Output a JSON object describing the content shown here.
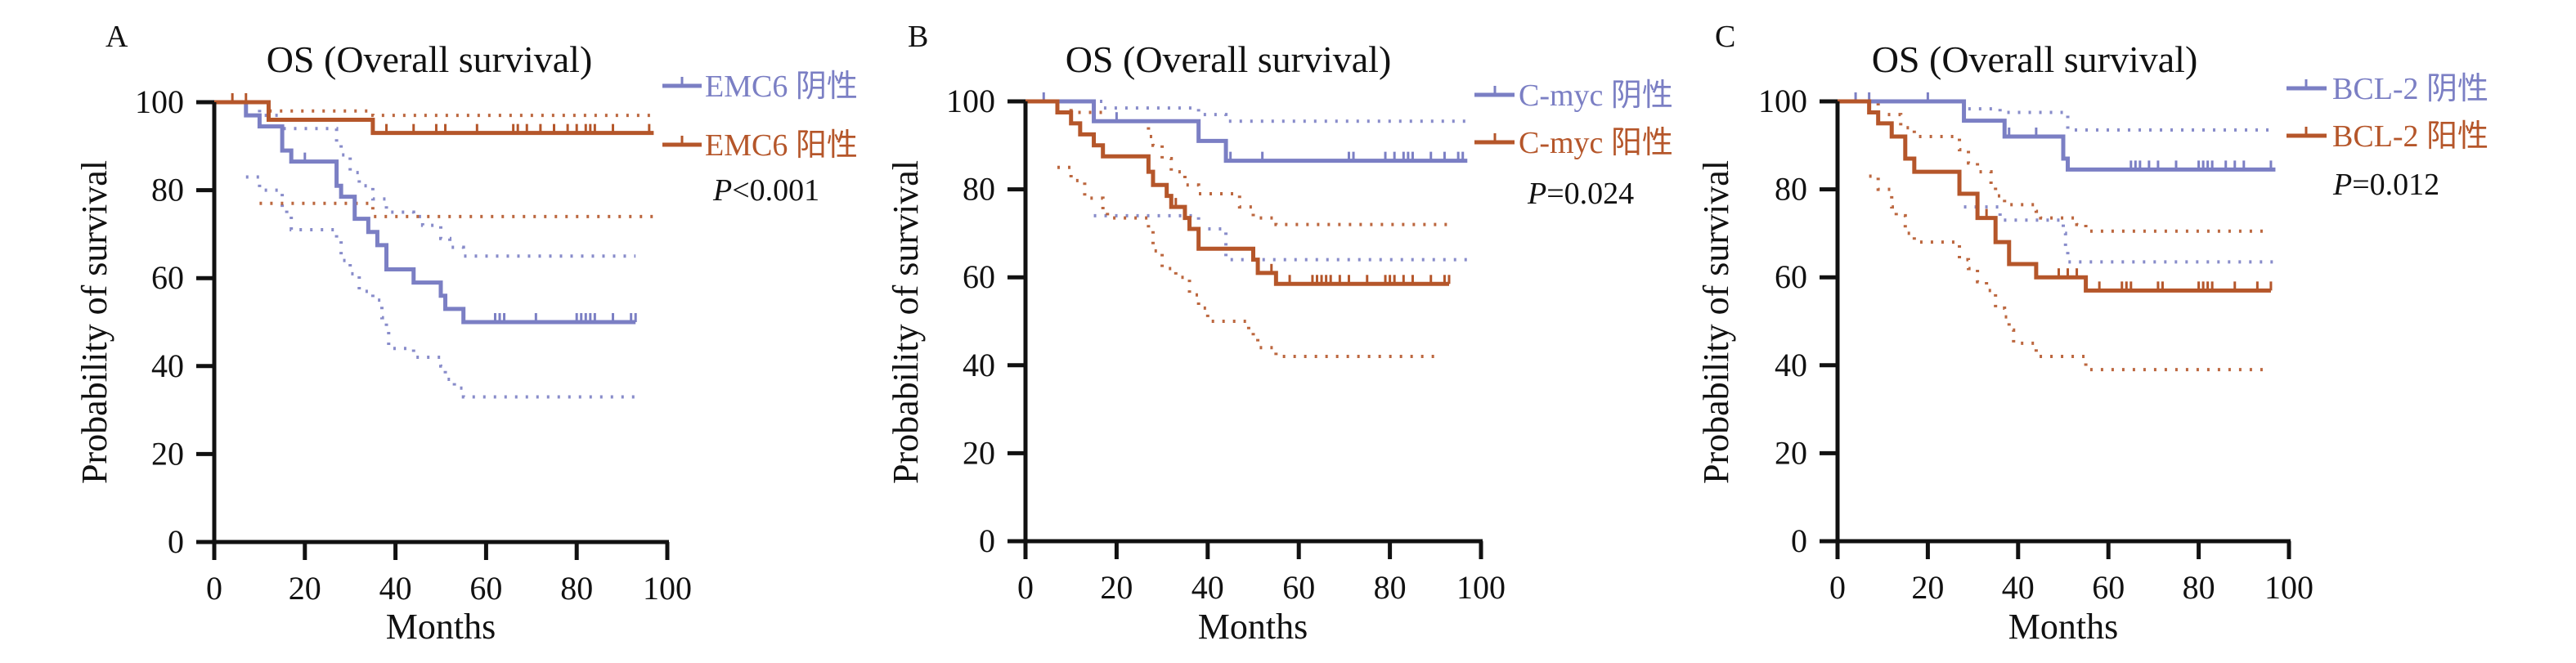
{
  "figure": {
    "colors": {
      "negative": "#7b7fc4",
      "positive": "#b5562a",
      "axis": "#111111",
      "text": "#111111"
    }
  },
  "chart_data": [
    {
      "panel": "A",
      "type": "line",
      "subtype": "kaplan-meier",
      "title": "OS (Overall survival)",
      "xlabel": "Months",
      "ylabel": "Probability of survival",
      "xlim": [
        0,
        100
      ],
      "ylim": [
        0,
        100
      ],
      "xticks": [
        0,
        20,
        40,
        60,
        80,
        100
      ],
      "yticks": [
        0,
        20,
        40,
        60,
        80,
        100
      ],
      "grid": false,
      "legend_position": "top-right",
      "annotation": {
        "italic": "P",
        "rest": "<0.001"
      },
      "series": [
        {
          "name": "EMC6 阴性",
          "color_key": "negative",
          "steps": [
            [
              0,
              100
            ],
            [
              7,
              97
            ],
            [
              10,
              94.5
            ],
            [
              15,
              89
            ],
            [
              17,
              86.5
            ],
            [
              27,
              81
            ],
            [
              28,
              78.5
            ],
            [
              31,
              73.5
            ],
            [
              34,
              70.5
            ],
            [
              36,
              67.5
            ],
            [
              38,
              62
            ],
            [
              44,
              59
            ],
            [
              50,
              56
            ],
            [
              51,
              53
            ],
            [
              55,
              50
            ],
            [
              93,
              50
            ]
          ],
          "censored": [
            20,
            62,
            63,
            64,
            71,
            80,
            81,
            82,
            83,
            84,
            88,
            92,
            93
          ],
          "ci_upper": [
            [
              7,
              100
            ],
            [
              10,
              97
            ],
            [
              15,
              94
            ],
            [
              27,
              91
            ],
            [
              28,
              88
            ],
            [
              30,
              84
            ],
            [
              32,
              81
            ],
            [
              35,
              78
            ],
            [
              38,
              75
            ],
            [
              44,
              74
            ],
            [
              46,
              72
            ],
            [
              50,
              69
            ],
            [
              52,
              67
            ],
            [
              55,
              65
            ],
            [
              93,
              65
            ]
          ],
          "ci_lower": [
            [
              7,
              83
            ],
            [
              10,
              80
            ],
            [
              15,
              76
            ],
            [
              16,
              74
            ],
            [
              17,
              71
            ],
            [
              27,
              69
            ],
            [
              28,
              64
            ],
            [
              30,
              61
            ],
            [
              32,
              57
            ],
            [
              35,
              55
            ],
            [
              37,
              51
            ],
            [
              38,
              48
            ],
            [
              38.5,
              44
            ],
            [
              44,
              42
            ],
            [
              50,
              40
            ],
            [
              51,
              37
            ],
            [
              53,
              35
            ],
            [
              55,
              33
            ],
            [
              93,
              33
            ]
          ]
        },
        {
          "name": "EMC6 阳性",
          "color_key": "positive",
          "steps": [
            [
              0,
              100
            ],
            [
              12,
              96
            ],
            [
              35,
              93
            ],
            [
              97,
              93
            ]
          ],
          "censored": [
            4,
            7,
            38,
            44,
            49,
            51,
            58,
            66,
            67,
            69,
            72,
            75,
            78,
            80,
            82,
            83,
            84,
            88,
            96
          ],
          "ci_upper": [
            [
              0,
              100
            ],
            [
              12,
              98
            ],
            [
              35,
              97
            ],
            [
              97,
              97
            ]
          ],
          "ci_lower": [
            [
              10,
              77
            ],
            [
              35,
              74
            ],
            [
              97,
              74
            ]
          ]
        }
      ]
    },
    {
      "panel": "B",
      "type": "line",
      "subtype": "kaplan-meier",
      "title": "OS (Overall survival)",
      "xlabel": "Months",
      "ylabel": "Probability of survival",
      "xlim": [
        0,
        100
      ],
      "ylim": [
        0,
        100
      ],
      "xticks": [
        0,
        20,
        40,
        60,
        80,
        100
      ],
      "yticks": [
        0,
        20,
        40,
        60,
        80,
        100
      ],
      "grid": false,
      "legend_position": "top-right",
      "annotation": {
        "italic": "P",
        "rest": "=0.024"
      },
      "series": [
        {
          "name": "C-myc 阴性",
          "color_key": "negative",
          "steps": [
            [
              0,
              100
            ],
            [
              15,
              95.5
            ],
            [
              38,
              91
            ],
            [
              44,
              86.5
            ],
            [
              97,
              86.5
            ]
          ],
          "censored": [
            4,
            20,
            45,
            52,
            71,
            72,
            79,
            81,
            83,
            84,
            85,
            89,
            92,
            95,
            96
          ],
          "ci_upper": [
            [
              0,
              100
            ],
            [
              17,
              98.5
            ],
            [
              38,
              97
            ],
            [
              44,
              95.5
            ],
            [
              97,
              95.5
            ]
          ],
          "ci_lower": [
            [
              15,
              74
            ],
            [
              38,
              71
            ],
            [
              44,
              64
            ],
            [
              97,
              64
            ]
          ]
        },
        {
          "name": "C-myc 阳性",
          "color_key": "positive",
          "steps": [
            [
              0,
              100
            ],
            [
              7,
              97.5
            ],
            [
              10,
              95
            ],
            [
              12,
              92.5
            ],
            [
              15,
              90
            ],
            [
              17,
              87.5
            ],
            [
              27,
              84
            ],
            [
              28,
              81
            ],
            [
              31,
              78.5
            ],
            [
              32,
              76
            ],
            [
              35,
              73.5
            ],
            [
              36,
              71
            ],
            [
              38,
              66.5
            ],
            [
              50,
              64
            ],
            [
              51,
              61
            ],
            [
              55,
              58.5
            ],
            [
              93,
              58.5
            ]
          ],
          "censored": [
            33,
            54,
            58,
            63,
            64,
            65,
            66,
            67,
            69,
            71,
            75,
            79,
            80,
            81,
            83,
            85,
            89,
            92,
            93
          ],
          "ci_upper": [
            [
              7,
              100
            ],
            [
              10,
              97.5
            ],
            [
              17,
              95.5
            ],
            [
              27,
              92
            ],
            [
              28,
              90
            ],
            [
              30,
              87
            ],
            [
              32,
              84
            ],
            [
              35,
              81
            ],
            [
              38,
              79
            ],
            [
              46,
              79
            ],
            [
              47,
              76
            ],
            [
              50,
              73.5
            ],
            [
              55,
              72
            ],
            [
              93,
              72
            ]
          ],
          "ci_lower": [
            [
              7,
              85
            ],
            [
              10,
              82
            ],
            [
              13,
              78
            ],
            [
              17,
              75
            ],
            [
              18,
              73.5
            ],
            [
              27,
              71
            ],
            [
              28,
              66
            ],
            [
              30,
              62
            ],
            [
              33,
              60
            ],
            [
              36,
              56
            ],
            [
              38,
              53
            ],
            [
              40,
              50
            ],
            [
              47,
              50
            ],
            [
              49,
              48
            ],
            [
              50,
              46
            ],
            [
              51,
              44
            ],
            [
              55,
              42
            ],
            [
              91,
              42
            ]
          ]
        }
      ]
    },
    {
      "panel": "C",
      "type": "line",
      "subtype": "kaplan-meier",
      "title": "OS (Overall survival)",
      "xlabel": "Months",
      "ylabel": "Probability of survival",
      "xlim": [
        0,
        100
      ],
      "ylim": [
        0,
        100
      ],
      "xticks": [
        0,
        20,
        40,
        60,
        80,
        100
      ],
      "yticks": [
        0,
        20,
        40,
        60,
        80,
        100
      ],
      "grid": false,
      "legend_position": "top-right",
      "annotation": {
        "italic": "P",
        "rest": "=0.012"
      },
      "series": [
        {
          "name": "BCL-2 阴性",
          "color_key": "negative",
          "steps": [
            [
              0,
              100
            ],
            [
              28,
              95.6
            ],
            [
              37,
              92
            ],
            [
              50,
              87
            ],
            [
              51,
              84.5
            ],
            [
              97,
              84.5
            ]
          ],
          "censored": [
            4,
            7,
            20,
            38,
            44,
            65,
            66,
            67,
            69,
            71,
            75,
            80,
            81,
            82,
            83,
            86,
            88,
            90,
            96
          ],
          "ci_upper": [
            [
              0,
              100
            ],
            [
              28,
              98.3
            ],
            [
              36,
              97.5
            ],
            [
              51,
              93.5
            ],
            [
              97,
              93.5
            ]
          ],
          "ci_lower": [
            [
              28,
              76
            ],
            [
              36,
              73
            ],
            [
              50,
              70
            ],
            [
              50.5,
              66
            ],
            [
              51,
              63.5
            ],
            [
              97,
              63.5
            ]
          ]
        },
        {
          "name": "BCL-2 阳性",
          "color_key": "positive",
          "steps": [
            [
              0,
              100
            ],
            [
              7,
              97.5
            ],
            [
              9,
              95
            ],
            [
              12,
              92
            ],
            [
              15,
              87
            ],
            [
              17,
              84
            ],
            [
              27,
              79
            ],
            [
              31,
              73.5
            ],
            [
              35,
              68
            ],
            [
              38,
              63
            ],
            [
              44,
              60
            ],
            [
              55,
              57
            ],
            [
              96,
              57
            ]
          ],
          "censored": [
            33,
            49,
            51,
            53,
            58,
            63,
            64,
            65,
            71,
            72,
            80,
            81,
            82,
            83,
            88,
            93,
            96
          ],
          "ci_upper": [
            [
              7,
              100
            ],
            [
              9,
              97
            ],
            [
              14,
              94
            ],
            [
              17,
              92
            ],
            [
              27,
              89
            ],
            [
              29,
              86
            ],
            [
              31,
              84
            ],
            [
              34,
              81
            ],
            [
              35,
              78.5
            ],
            [
              37,
              76.5
            ],
            [
              44,
              75
            ],
            [
              45,
              73.5
            ],
            [
              53,
              72
            ],
            [
              55,
              70.5
            ],
            [
              96,
              70.5
            ]
          ],
          "ci_lower": [
            [
              7,
              83
            ],
            [
              9,
              80
            ],
            [
              12,
              76
            ],
            [
              13,
              74
            ],
            [
              15,
              70
            ],
            [
              17,
              68
            ],
            [
              27,
              64
            ],
            [
              29,
              62
            ],
            [
              31,
              59
            ],
            [
              33,
              57
            ],
            [
              35,
              53
            ],
            [
              37,
              51
            ],
            [
              38,
              48
            ],
            [
              39,
              45
            ],
            [
              44,
              42
            ],
            [
              55,
              39
            ],
            [
              96,
              39
            ]
          ]
        }
      ]
    }
  ]
}
